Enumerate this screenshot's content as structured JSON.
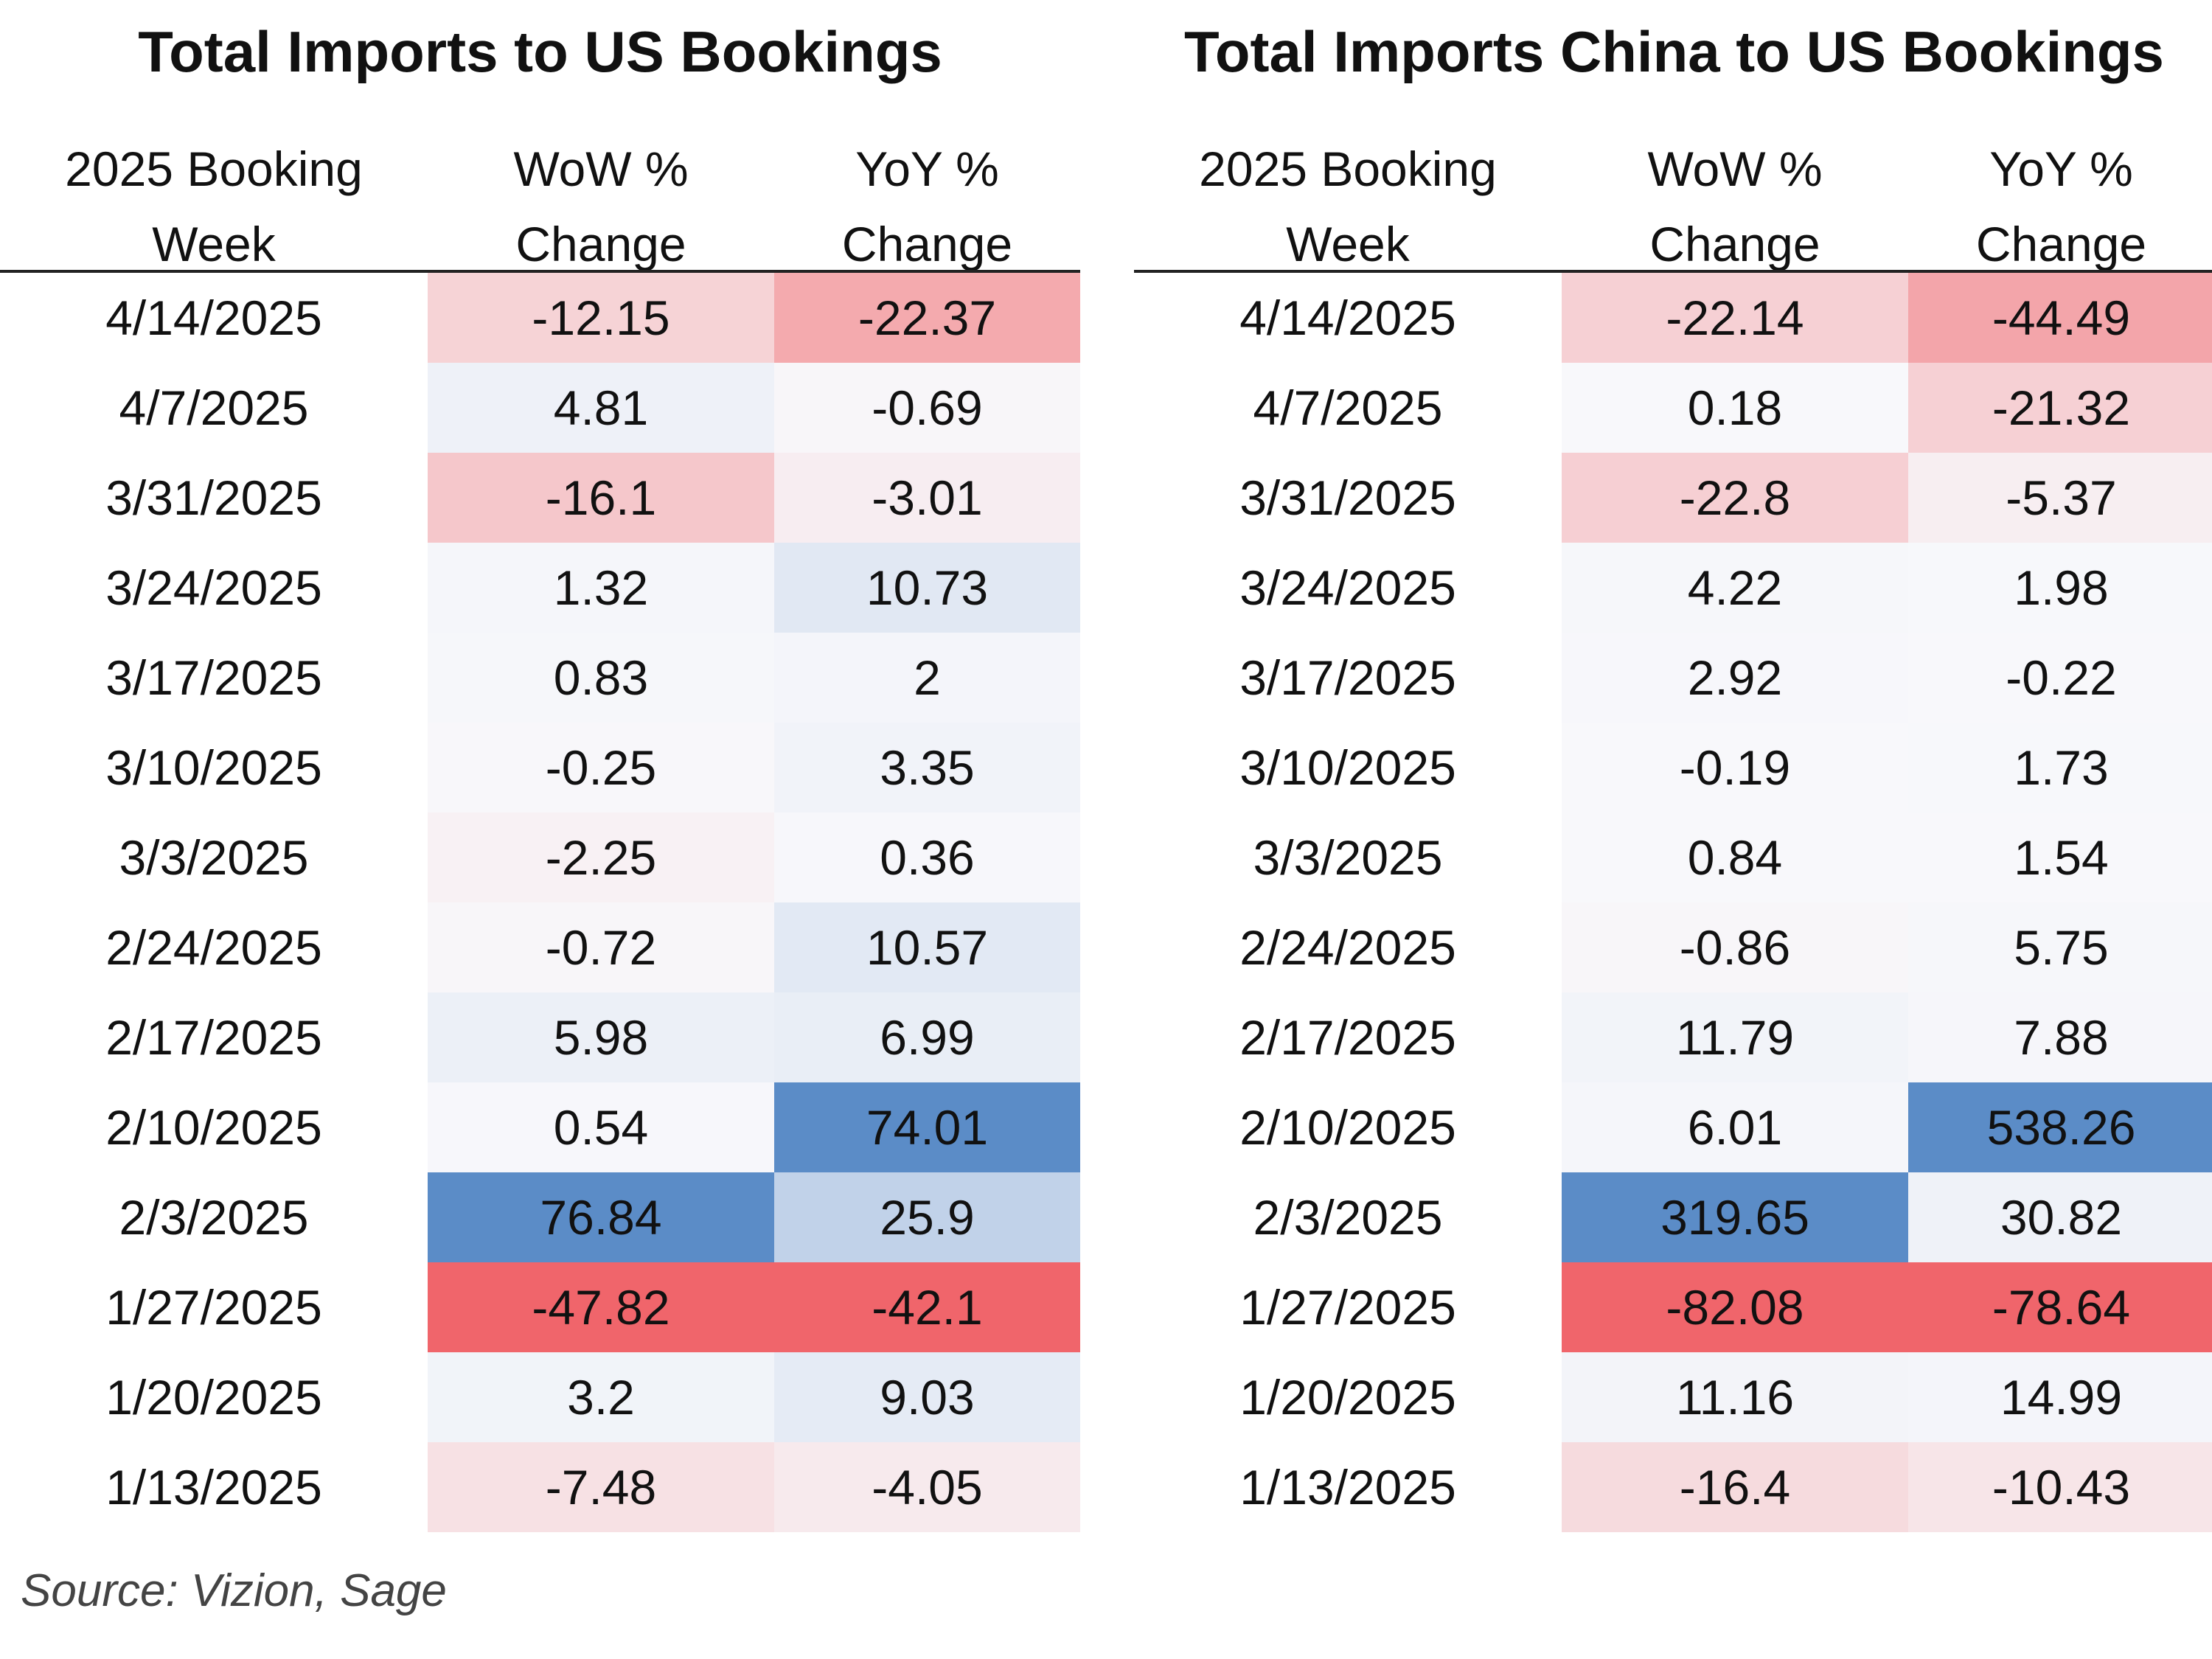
{
  "chart_data": [
    {
      "type": "table",
      "title": "Total Imports to US Bookings",
      "columns": [
        {
          "line1": "2025 Booking",
          "line2": "Week"
        },
        {
          "line1": "WoW %",
          "line2": "Change"
        },
        {
          "line1": "YoY %",
          "line2": "Change"
        }
      ],
      "rows": [
        {
          "week": "4/14/2025",
          "wow": "-12.15",
          "yoy": "-22.37"
        },
        {
          "week": "4/7/2025",
          "wow": "4.81",
          "yoy": "-0.69"
        },
        {
          "week": "3/31/2025",
          "wow": "-16.1",
          "yoy": "-3.01"
        },
        {
          "week": "3/24/2025",
          "wow": "1.32",
          "yoy": "10.73"
        },
        {
          "week": "3/17/2025",
          "wow": "0.83",
          "yoy": "2"
        },
        {
          "week": "3/10/2025",
          "wow": "-0.25",
          "yoy": "3.35"
        },
        {
          "week": "3/3/2025",
          "wow": "-2.25",
          "yoy": "0.36"
        },
        {
          "week": "2/24/2025",
          "wow": "-0.72",
          "yoy": "10.57"
        },
        {
          "week": "2/17/2025",
          "wow": "5.98",
          "yoy": "6.99"
        },
        {
          "week": "2/10/2025",
          "wow": "0.54",
          "yoy": "74.01"
        },
        {
          "week": "2/3/2025",
          "wow": "76.84",
          "yoy": "25.9"
        },
        {
          "week": "1/27/2025",
          "wow": "-47.82",
          "yoy": "-42.1"
        },
        {
          "week": "1/20/2025",
          "wow": "3.2",
          "yoy": "9.03"
        },
        {
          "week": "1/13/2025",
          "wow": "-7.48",
          "yoy": "-4.05"
        }
      ]
    },
    {
      "type": "table",
      "title": "Total Imports China to US Bookings",
      "columns": [
        {
          "line1": "2025 Booking",
          "line2": "Week"
        },
        {
          "line1": "WoW %",
          "line2": "Change"
        },
        {
          "line1": "YoY %",
          "line2": "Change"
        }
      ],
      "rows": [
        {
          "week": "4/14/2025",
          "wow": "-22.14",
          "yoy": "-44.49"
        },
        {
          "week": "4/7/2025",
          "wow": "0.18",
          "yoy": "-21.32"
        },
        {
          "week": "3/31/2025",
          "wow": "-22.8",
          "yoy": "-5.37"
        },
        {
          "week": "3/24/2025",
          "wow": "4.22",
          "yoy": "1.98"
        },
        {
          "week": "3/17/2025",
          "wow": "2.92",
          "yoy": "-0.22"
        },
        {
          "week": "3/10/2025",
          "wow": "-0.19",
          "yoy": "1.73"
        },
        {
          "week": "3/3/2025",
          "wow": "0.84",
          "yoy": "1.54"
        },
        {
          "week": "2/24/2025",
          "wow": "-0.86",
          "yoy": "5.75"
        },
        {
          "week": "2/17/2025",
          "wow": "11.79",
          "yoy": "7.88"
        },
        {
          "week": "2/10/2025",
          "wow": "6.01",
          "yoy": "538.26"
        },
        {
          "week": "2/3/2025",
          "wow": "319.65",
          "yoy": "30.82"
        },
        {
          "week": "1/27/2025",
          "wow": "-82.08",
          "yoy": "-78.64"
        },
        {
          "week": "1/20/2025",
          "wow": "11.16",
          "yoy": "14.99"
        },
        {
          "week": "1/13/2025",
          "wow": "-16.4",
          "yoy": "-10.43"
        }
      ]
    }
  ],
  "colors": {
    "positive": "#5b8cc7",
    "negative": "#f0656b",
    "neutral": "#f8f8fb"
  },
  "source": "Source: Vizion, Sage"
}
